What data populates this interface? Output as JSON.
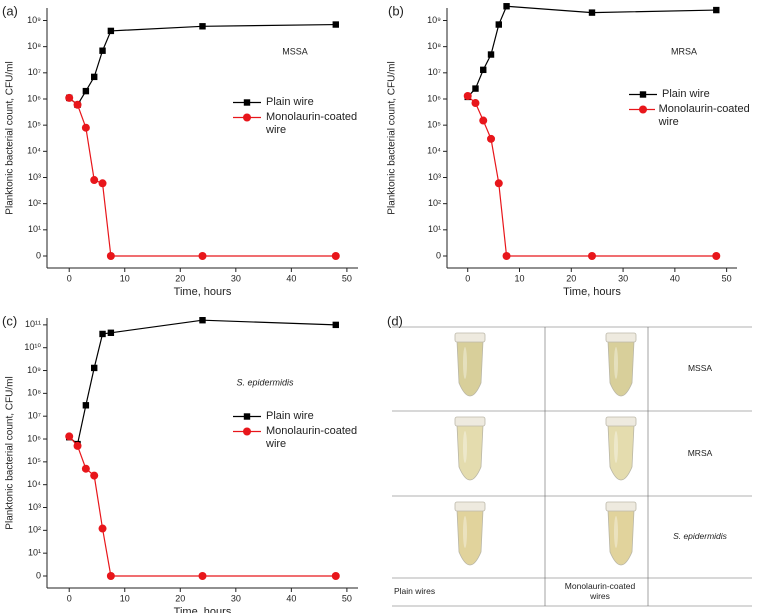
{
  "chart_data": [
    {
      "type": "line",
      "panel_label": "(a)",
      "annotation": "MSSA",
      "xlabel": "Time, hours",
      "ylabel": "Planktonic bacterial count, CFU/ml",
      "x": [
        0,
        1.5,
        3,
        4.5,
        6,
        7.5,
        24,
        48
      ],
      "series": [
        {
          "name": "Plain wire",
          "color": "#000000",
          "marker": "square",
          "values": [
            1100000,
            600000,
            2000000,
            7000000,
            70000000,
            400000000,
            600000000,
            700000000
          ]
        },
        {
          "name": "Monolaurin-coated wire",
          "color": "#e8161b",
          "marker": "circle",
          "values": [
            1100000,
            600000,
            80000,
            800,
            600,
            0,
            0,
            0
          ]
        }
      ],
      "xlim": [
        -4,
        52
      ],
      "xticks": [
        0,
        10,
        20,
        30,
        40,
        50
      ],
      "ylim": [
        0,
        3000000000
      ],
      "log_y": true,
      "yticks": [
        0,
        {
          "value": 10,
          "label": "10¹"
        },
        {
          "value": 100,
          "label": "10²"
        },
        {
          "value": 1000,
          "label": "10³"
        },
        {
          "value": 10000,
          "label": "10⁴"
        },
        {
          "value": 100000,
          "label": "10⁵"
        },
        {
          "value": 1000000,
          "label": "10⁶"
        },
        {
          "value": 10000000,
          "label": "10⁷"
        },
        {
          "value": 100000000,
          "label": "10⁸"
        },
        {
          "value": 1000000000,
          "label": "10⁹"
        }
      ],
      "legend": "center"
    },
    {
      "type": "line",
      "panel_label": "(b)",
      "annotation": "MRSA",
      "xlabel": "Time, hours",
      "ylabel": "Planktonic bacterial count, CFU/ml",
      "x": [
        0,
        1.5,
        3,
        4.5,
        6,
        7.5,
        24,
        48
      ],
      "series": [
        {
          "name": "Plain wire",
          "color": "#000000",
          "marker": "square",
          "values": [
            1200000,
            2500000,
            13000000,
            50000000,
            700000000,
            3500000000,
            2000000000,
            2500000000
          ]
        },
        {
          "name": "Monolaurin-coated wire",
          "color": "#e8161b",
          "marker": "circle",
          "values": [
            1300000,
            700000,
            150000,
            30000,
            600,
            0,
            0,
            0
          ]
        }
      ],
      "xlim": [
        -4,
        52
      ],
      "xticks": [
        0,
        10,
        20,
        30,
        40,
        50
      ],
      "ylim": [
        0,
        3000000000
      ],
      "log_y": true,
      "yticks": [
        0,
        {
          "value": 10,
          "label": "10¹"
        },
        {
          "value": 100,
          "label": "10²"
        },
        {
          "value": 1000,
          "label": "10³"
        },
        {
          "value": 10000,
          "label": "10⁴"
        },
        {
          "value": 100000,
          "label": "10⁵"
        },
        {
          "value": 1000000,
          "label": "10⁶"
        },
        {
          "value": 10000000,
          "label": "10⁷"
        },
        {
          "value": 100000000,
          "label": "10⁸"
        },
        {
          "value": 1000000000,
          "label": "10⁹"
        }
      ],
      "legend": "center"
    },
    {
      "type": "line",
      "panel_label": "(c)",
      "annotation": "S. epidermidis",
      "xlabel": "Time, hours",
      "ylabel": "Planktonic bacterial count, CFU/ml",
      "x": [
        0,
        1.5,
        3,
        4.5,
        6,
        7.5,
        24,
        48
      ],
      "series": [
        {
          "name": "Plain wire",
          "color": "#000000",
          "marker": "square",
          "values": [
            1200000,
            600000,
            30000000,
            1300000000,
            40000000000,
            45000000000,
            160000000000,
            100000000000
          ]
        },
        {
          "name": "Monolaurin-coated wire",
          "color": "#e8161b",
          "marker": "circle",
          "values": [
            1300000,
            500000,
            50000,
            25000,
            120,
            0,
            0,
            0
          ]
        }
      ],
      "xlim": [
        -4,
        52
      ],
      "xticks": [
        0,
        10,
        20,
        30,
        40,
        50
      ],
      "ylim": [
        0,
        200000000000
      ],
      "log_y": true,
      "yticks": [
        0,
        {
          "value": 10,
          "label": "10¹"
        },
        {
          "value": 100,
          "label": "10²"
        },
        {
          "value": 1000,
          "label": "10³"
        },
        {
          "value": 10000,
          "label": "10⁴"
        },
        {
          "value": 100000,
          "label": "10⁵"
        },
        {
          "value": 1000000,
          "label": "10⁶"
        },
        {
          "value": 10000000,
          "label": "10⁷"
        },
        {
          "value": 100000000,
          "label": "10⁸"
        },
        {
          "value": 1000000000,
          "label": "10⁹"
        },
        {
          "value": 10000000000,
          "label": "10¹⁰"
        },
        {
          "value": 100000000000,
          "label": "10¹¹"
        }
      ],
      "legend": "center"
    }
  ],
  "panel_d": {
    "label": "(d)",
    "rows": [
      "MSSA",
      "MRSA",
      "S. epidermidis"
    ],
    "columns": [
      "Plain wires",
      "Monolaurin-coated wires"
    ]
  }
}
